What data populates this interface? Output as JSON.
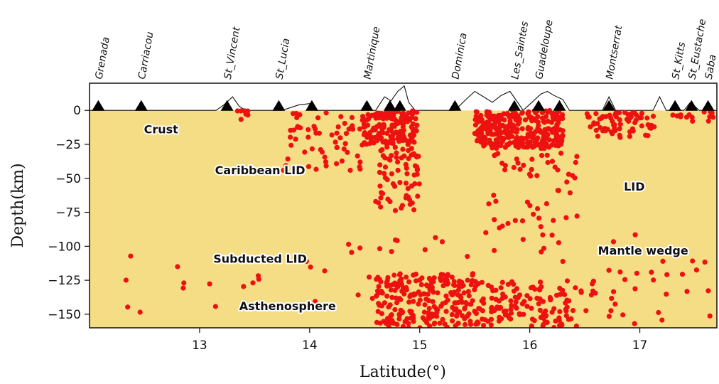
{
  "chart_data": {
    "type": "scatter",
    "xlabel": "Latitude(°)",
    "ylabel": "Depth(km)",
    "xlim": [
      12.0,
      17.7
    ],
    "ylim": [
      -160,
      20
    ],
    "xticks": [
      13,
      14,
      15,
      16,
      17
    ],
    "xtick_labels": [
      "13",
      "14",
      "15",
      "16",
      "17"
    ],
    "yticks": [
      0,
      -25,
      -50,
      -75,
      -100,
      -125,
      -150
    ],
    "ytick_labels": [
      "0",
      "−25",
      "−50",
      "−75",
      "−100",
      "−125",
      "−150"
    ],
    "grid": false,
    "colors": {
      "crust": "#f5dd85",
      "caribbean_lid": "#1f8ee8",
      "mantle_wedge": "#a6d6f4",
      "subducted_lid": "#5a50f0",
      "asthenosphere": "#4aa8ee",
      "events": "#ee1111",
      "stations": "#000000"
    },
    "stations": [
      {
        "name": "Grenada",
        "lat": 12.08
      },
      {
        "name": "Carriacou",
        "lat": 12.47
      },
      {
        "name": "St_Vincent",
        "lat": 13.25
      },
      {
        "name": "St_Lucia",
        "lat": 13.72
      },
      {
        "name": "",
        "lat": 14.02
      },
      {
        "name": "Martinique",
        "lat": 14.52
      },
      {
        "name": "",
        "lat": 14.73
      },
      {
        "name": "",
        "lat": 14.82
      },
      {
        "name": "Dominica",
        "lat": 15.32
      },
      {
        "name": "Les_Saintes",
        "lat": 15.86
      },
      {
        "name": "Guadeloupe",
        "lat": 16.08
      },
      {
        "name": "",
        "lat": 16.27
      },
      {
        "name": "Montserrat",
        "lat": 16.72
      },
      {
        "name": "St_Kitts",
        "lat": 17.32
      },
      {
        "name": "St_Eustache",
        "lat": 17.47
      },
      {
        "name": "Saba",
        "lat": 17.62
      }
    ],
    "topography": [
      [
        12.0,
        0
      ],
      [
        13.15,
        0
      ],
      [
        13.22,
        4
      ],
      [
        13.3,
        10
      ],
      [
        13.36,
        3
      ],
      [
        13.42,
        0
      ],
      [
        13.75,
        0
      ],
      [
        13.9,
        4
      ],
      [
        14.0,
        5
      ],
      [
        14.06,
        0
      ],
      [
        14.6,
        0
      ],
      [
        14.68,
        10
      ],
      [
        14.74,
        7
      ],
      [
        14.8,
        14
      ],
      [
        14.86,
        18
      ],
      [
        14.9,
        6
      ],
      [
        14.96,
        0
      ],
      [
        15.32,
        0
      ],
      [
        15.42,
        8
      ],
      [
        15.5,
        14
      ],
      [
        15.58,
        10
      ],
      [
        15.66,
        6
      ],
      [
        15.74,
        11
      ],
      [
        15.82,
        14
      ],
      [
        15.88,
        7
      ],
      [
        15.94,
        0
      ],
      [
        16.02,
        6
      ],
      [
        16.1,
        12
      ],
      [
        16.16,
        14
      ],
      [
        16.22,
        11
      ],
      [
        16.3,
        8
      ],
      [
        16.36,
        0
      ],
      [
        16.66,
        0
      ],
      [
        16.72,
        10
      ],
      [
        16.78,
        0
      ],
      [
        17.12,
        0
      ],
      [
        17.18,
        10
      ],
      [
        17.24,
        0
      ],
      [
        17.4,
        0
      ],
      [
        17.46,
        6
      ],
      [
        17.54,
        0
      ],
      [
        17.7,
        0
      ]
    ],
    "layers": [
      {
        "name": "Asthenosphere",
        "fill": "asthenosphere",
        "label_lat": 13.8,
        "label_depth": -147,
        "top": [
          [
            12.0,
            -128
          ],
          [
            12.1,
            -128
          ],
          [
            12.18,
            -123
          ],
          [
            12.35,
            -160
          ],
          [
            12.7,
            -160
          ],
          [
            13.0,
            -155
          ],
          [
            13.1,
            -135
          ],
          [
            13.2,
            -124
          ],
          [
            13.4,
            -122
          ],
          [
            13.7,
            -122
          ],
          [
            14.0,
            -127
          ],
          [
            14.3,
            -135
          ],
          [
            14.5,
            -146
          ],
          [
            14.65,
            -160
          ],
          [
            17.7,
            -160
          ]
        ]
      },
      {
        "name": "Subducted LID",
        "fill": "subducted_lid",
        "label_lat": 13.55,
        "label_depth": -112,
        "top": [
          [
            12.0,
            -80
          ],
          [
            12.1,
            -80
          ],
          [
            12.25,
            -72
          ],
          [
            12.5,
            -70
          ],
          [
            12.7,
            -72
          ],
          [
            12.95,
            -82
          ],
          [
            13.15,
            -92
          ],
          [
            13.35,
            -95
          ],
          [
            13.55,
            -100
          ],
          [
            13.8,
            -95
          ],
          [
            14.0,
            -88
          ],
          [
            14.2,
            -87
          ],
          [
            14.35,
            -85
          ],
          [
            14.6,
            -85
          ],
          [
            14.8,
            -84
          ],
          [
            15.0,
            -86
          ],
          [
            15.2,
            -92
          ],
          [
            15.4,
            -100
          ],
          [
            15.55,
            -107
          ],
          [
            15.7,
            -120
          ],
          [
            15.9,
            -125
          ],
          [
            16.1,
            -125
          ],
          [
            16.3,
            -127
          ],
          [
            16.6,
            -127
          ],
          [
            16.9,
            -127
          ],
          [
            17.2,
            -126
          ],
          [
            17.4,
            -124
          ],
          [
            17.5,
            -122
          ],
          [
            17.7,
            -105
          ]
        ]
      },
      {
        "name": "Mantle wedge",
        "fill": "mantle_wedge",
        "label_lat": 17.03,
        "label_depth": -106,
        "top": [
          [
            12.0,
            -60
          ],
          [
            12.1,
            -60
          ],
          [
            12.25,
            -52
          ],
          [
            12.5,
            -50
          ],
          [
            12.8,
            -55
          ],
          [
            13.05,
            -64
          ],
          [
            13.3,
            -68
          ],
          [
            13.55,
            -69
          ],
          [
            13.8,
            -68
          ],
          [
            14.0,
            -65
          ],
          [
            14.2,
            -68
          ],
          [
            14.4,
            -73
          ],
          [
            14.55,
            -75
          ],
          [
            14.8,
            -75
          ],
          [
            15.0,
            -70
          ],
          [
            15.15,
            -55
          ],
          [
            15.3,
            -44
          ],
          [
            15.4,
            -48
          ],
          [
            15.55,
            -80
          ],
          [
            15.7,
            -100
          ],
          [
            15.85,
            -103
          ],
          [
            16.05,
            -92
          ],
          [
            16.3,
            -84
          ],
          [
            16.6,
            -82
          ],
          [
            16.9,
            -80
          ],
          [
            17.2,
            -78
          ],
          [
            17.45,
            -72
          ],
          [
            17.55,
            -56
          ],
          [
            17.62,
            -60
          ],
          [
            17.7,
            -73
          ]
        ]
      },
      {
        "name": "Caribbean LID",
        "fill": "caribbean_lid",
        "label_lat": 13.55,
        "label_depth": -47,
        "top": [
          [
            12.0,
            -28
          ],
          [
            12.2,
            -32
          ],
          [
            12.4,
            -30
          ],
          [
            12.7,
            -29
          ],
          [
            13.0,
            -27
          ],
          [
            13.3,
            -24
          ],
          [
            13.6,
            -21
          ],
          [
            14.0,
            -21
          ],
          [
            14.3,
            -23
          ],
          [
            14.6,
            -25
          ],
          [
            14.9,
            -27
          ],
          [
            15.2,
            -27
          ],
          [
            15.5,
            -27
          ],
          [
            15.8,
            -28
          ],
          [
            16.1,
            -29
          ],
          [
            16.4,
            -28
          ],
          [
            16.7,
            -28
          ],
          [
            17.0,
            -29
          ],
          [
            17.2,
            -28
          ],
          [
            17.4,
            -25
          ],
          [
            17.5,
            -27
          ],
          [
            17.7,
            -28
          ]
        ]
      },
      {
        "name": "Crust",
        "fill": "crust",
        "label_lat": 12.65,
        "label_depth": -17,
        "top": [
          [
            12.0,
            0
          ],
          [
            17.7,
            0
          ]
        ]
      }
    ],
    "extra_labels": [
      {
        "name": "LID",
        "lat": 16.95,
        "depth": -59
      }
    ],
    "events_generated": {
      "seed": 20240117,
      "clusters": [
        {
          "lat": [
            14.48,
            15.0
          ],
          "depth": [
            0,
            -25
          ],
          "n": 160
        },
        {
          "lat": [
            15.5,
            16.3
          ],
          "depth": [
            0,
            -28
          ],
          "n": 300
        },
        {
          "lat": [
            16.5,
            17.15
          ],
          "depth": [
            0,
            -20
          ],
          "n": 70
        },
        {
          "lat": [
            13.75,
            14.5
          ],
          "depth": [
            0,
            -45
          ],
          "n": 60
        },
        {
          "lat": [
            14.6,
            15.0
          ],
          "depth": [
            -25,
            -75
          ],
          "n": 70
        },
        {
          "lat": [
            15.6,
            16.45
          ],
          "depth": [
            -28,
            -95
          ],
          "n": 55
        },
        {
          "lat": [
            14.6,
            15.5
          ],
          "depth": [
            -120,
            -160
          ],
          "n": 210
        },
        {
          "lat": [
            15.5,
            16.5
          ],
          "depth": [
            -125,
            -160
          ],
          "n": 120
        },
        {
          "lat": [
            14.2,
            17.7
          ],
          "depth": [
            -90,
            -160
          ],
          "n": 90
        },
        {
          "lat": [
            12.2,
            14.2
          ],
          "depth": [
            -95,
            -160
          ],
          "n": 18
        },
        {
          "lat": [
            13.2,
            13.45
          ],
          "depth": [
            0,
            -8
          ],
          "n": 8
        },
        {
          "lat": [
            17.3,
            17.7
          ],
          "depth": [
            0,
            -8
          ],
          "n": 14
        }
      ]
    }
  }
}
